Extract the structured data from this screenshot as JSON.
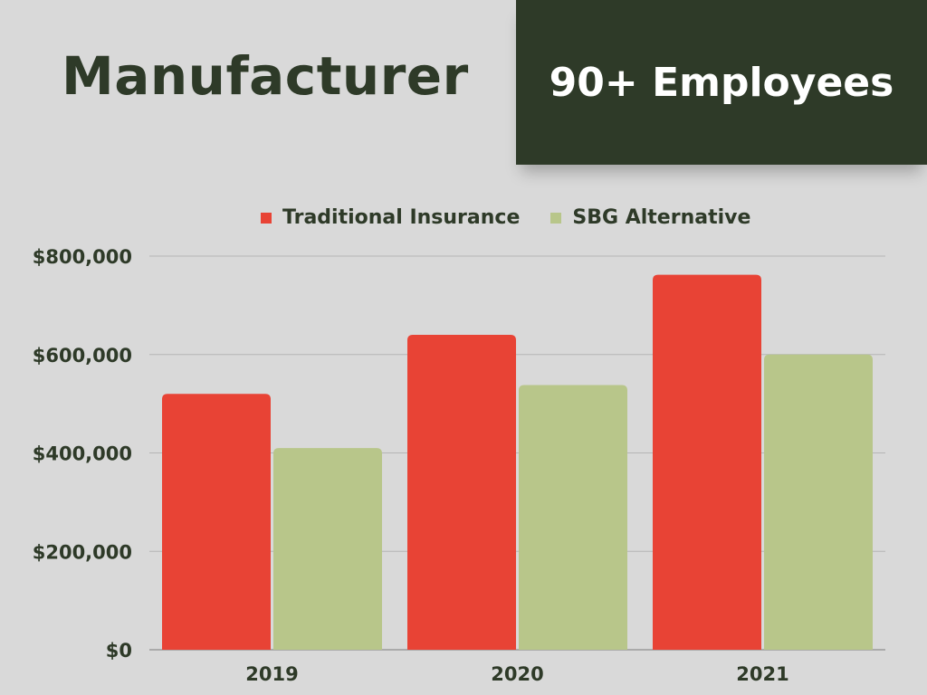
{
  "header": {
    "title": "Manufacturer",
    "badge": "90+ Employees"
  },
  "colors": {
    "background": "#d9d9d9",
    "dark_green": "#2e3a28",
    "traditional": "#e84335",
    "sbg": "#b8c68a"
  },
  "chart_data": {
    "type": "bar",
    "categories": [
      "2019",
      "2020",
      "2021"
    ],
    "series": [
      {
        "name": "Traditional Insurance",
        "color": "#e84335",
        "values": [
          520000,
          640000,
          762000
        ]
      },
      {
        "name": "SBG Alternative",
        "color": "#b8c68a",
        "values": [
          410000,
          538000,
          600000
        ]
      }
    ],
    "ylim": [
      0,
      800000
    ],
    "yticks": [
      0,
      200000,
      400000,
      600000,
      800000
    ],
    "ytick_labels": [
      "$0",
      "$200,000",
      "$400,000",
      "$600,000",
      "$800,000"
    ],
    "legend_position": "top",
    "grid": true
  }
}
